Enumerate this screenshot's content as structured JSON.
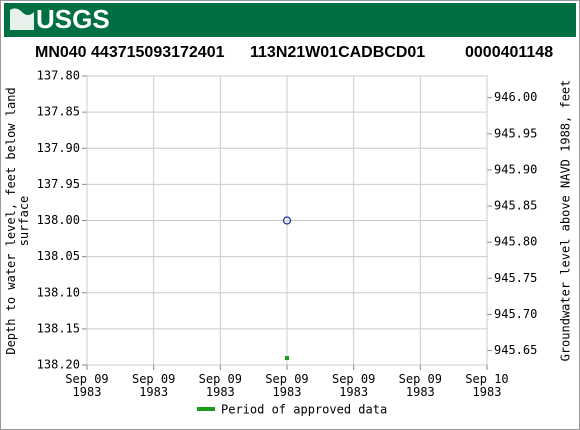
{
  "logo_text": "USGS",
  "chart_data": {
    "type": "scatter",
    "title": [
      "MN040 443715093172401",
      "113N21W01CADBCD01",
      "0000401148"
    ],
    "y_label": "Depth to water level, feet below land surface",
    "y2_label": "Groundwater level above NAVD 1988, feet",
    "xlim": [
      0,
      24
    ],
    "xticks": [
      {
        "value": 0,
        "label": "Sep 09\n1983"
      },
      {
        "value": 4,
        "label": "Sep 09\n1983"
      },
      {
        "value": 8,
        "label": "Sep 09\n1983"
      },
      {
        "value": 12,
        "label": "Sep 09\n1983"
      },
      {
        "value": 16,
        "label": "Sep 09\n1983"
      },
      {
        "value": 20,
        "label": "Sep 09\n1983"
      },
      {
        "value": 24,
        "label": "Sep 10\n1983"
      }
    ],
    "ylim": [
      137.8,
      138.2
    ],
    "y_inverted": true,
    "yticks": [
      {
        "value": 137.8,
        "label": "137.80"
      },
      {
        "value": 137.85,
        "label": "137.85"
      },
      {
        "value": 137.9,
        "label": "137.90"
      },
      {
        "value": 137.95,
        "label": "137.95"
      },
      {
        "value": 138.0,
        "label": "138.00"
      },
      {
        "value": 138.05,
        "label": "138.05"
      },
      {
        "value": 138.1,
        "label": "138.10"
      },
      {
        "value": 138.15,
        "label": "138.15"
      },
      {
        "value": 138.2,
        "label": "138.20"
      }
    ],
    "y2lim": [
      945.63,
      946.03
    ],
    "y2ticks": [
      {
        "value": 945.65,
        "label": "945.65"
      },
      {
        "value": 945.7,
        "label": "945.70"
      },
      {
        "value": 945.75,
        "label": "945.75"
      },
      {
        "value": 945.8,
        "label": "945.80"
      },
      {
        "value": 945.85,
        "label": "945.85"
      },
      {
        "value": 945.9,
        "label": "945.90"
      },
      {
        "value": 945.95,
        "label": "945.95"
      },
      {
        "value": 946.0,
        "label": "946.00"
      }
    ],
    "grid": true,
    "series": [
      {
        "color": "#1a3ca0",
        "x": [
          12
        ],
        "values": [
          138.0
        ]
      },
      {
        "name": "Period of approved data",
        "color": "#1a9c1a",
        "x": [
          12
        ]
      }
    ]
  }
}
